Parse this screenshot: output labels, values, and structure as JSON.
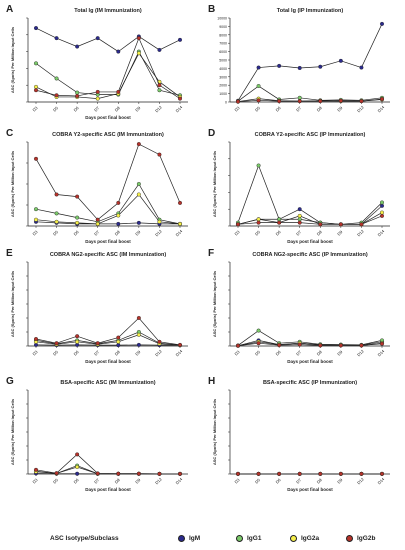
{
  "chart_data": [
    {
      "panel": "A",
      "type": "line",
      "title": "Total Ig (IM Immunization)",
      "xlabel": "Days post final boost",
      "ylabel": "ASC (Spots) Per Million Input Cells",
      "categories": [
        "D3",
        "D5",
        "D6",
        "D7",
        "D8",
        "D9",
        "D12",
        "D14"
      ],
      "ylim": [
        0,
        2500
      ],
      "yticks": [
        0,
        500,
        1000,
        1500,
        2000,
        2500
      ],
      "yticklabels": [
        "",
        "",
        "",
        "",
        "",
        ""
      ],
      "series": [
        {
          "name": "IgM",
          "color": "#2b2a8c",
          "values": [
            2200,
            1900,
            1650,
            1900,
            1500,
            1950,
            1550,
            1850
          ]
        },
        {
          "name": "IgG1",
          "color": "#7bc96a",
          "values": [
            1150,
            700,
            280,
            220,
            220,
            1500,
            350,
            200
          ]
        },
        {
          "name": "IgG2a",
          "color": "#f6ef4a",
          "values": [
            450,
            150,
            150,
            100,
            250,
            1450,
            600,
            150
          ]
        },
        {
          "name": "IgG2b",
          "color": "#b5332b",
          "values": [
            350,
            200,
            180,
            300,
            300,
            1900,
            500,
            100
          ]
        }
      ]
    },
    {
      "panel": "B",
      "type": "line",
      "title": "Total Ig (IP Immunization)",
      "xlabel": "",
      "ylabel": "",
      "categories": [
        "D3",
        "D5",
        "D6",
        "D7",
        "D8",
        "D9",
        "D12",
        "D14"
      ],
      "ylim": [
        0,
        10000
      ],
      "yticks": [
        0,
        1000,
        2000,
        3000,
        4000,
        5000,
        6000,
        7000,
        8000,
        9000,
        10000
      ],
      "yticklabels": [
        "0",
        "1000",
        "2000",
        "3000",
        "4000",
        "5000",
        "6000",
        "7000",
        "8000",
        "9000",
        "10000"
      ],
      "series": [
        {
          "name": "IgM",
          "color": "#2b2a8c",
          "values": [
            150,
            4100,
            4300,
            4050,
            4200,
            4900,
            4100,
            9300
          ]
        },
        {
          "name": "IgG1",
          "color": "#7bc96a",
          "values": [
            100,
            1900,
            300,
            500,
            200,
            250,
            200,
            500
          ]
        },
        {
          "name": "IgG2a",
          "color": "#f6ef4a",
          "values": [
            50,
            400,
            150,
            100,
            150,
            100,
            100,
            300
          ]
        },
        {
          "name": "IgG2b",
          "color": "#b5332b",
          "values": [
            50,
            200,
            100,
            100,
            100,
            150,
            100,
            350
          ]
        }
      ]
    },
    {
      "panel": "C",
      "type": "line",
      "title": "COBRA Y2-specific ASC (IM Immunization)",
      "xlabel": "Days post final boost",
      "ylabel": "ASC (Spots) Per Million Input Cells",
      "categories": [
        "D3",
        "D5",
        "D6",
        "D7",
        "D8",
        "D9",
        "D12",
        "D14"
      ],
      "ylim": [
        0,
        400
      ],
      "yticks": [
        0,
        100,
        200,
        300,
        400
      ],
      "yticklabels": [
        "",
        "",
        "",
        "",
        ""
      ],
      "series": [
        {
          "name": "IgM",
          "color": "#2b2a8c",
          "values": [
            20,
            15,
            10,
            10,
            10,
            15,
            10,
            10
          ]
        },
        {
          "name": "IgG1",
          "color": "#7bc96a",
          "values": [
            80,
            60,
            40,
            20,
            60,
            200,
            30,
            10
          ]
        },
        {
          "name": "IgG2a",
          "color": "#f6ef4a",
          "values": [
            30,
            20,
            15,
            10,
            50,
            150,
            20,
            10
          ]
        },
        {
          "name": "IgG2b",
          "color": "#b5332b",
          "values": [
            320,
            150,
            140,
            30,
            110,
            390,
            340,
            110
          ]
        }
      ]
    },
    {
      "panel": "D",
      "type": "line",
      "title": "COBRA Y2-specific ASC (IP Immunization)",
      "xlabel": "Days post final boost",
      "ylabel": "ASC (Spots) Per Million Input Cells",
      "categories": [
        "D3",
        "D5",
        "D6",
        "D7",
        "D8",
        "D9",
        "D12",
        "D14"
      ],
      "ylim": [
        0,
        250
      ],
      "yticks": [
        0,
        50,
        100,
        150,
        200,
        250
      ],
      "yticklabels": [
        "",
        "",
        "",
        "",
        "",
        ""
      ],
      "series": [
        {
          "name": "IgM",
          "color": "#2b2a8c",
          "values": [
            5,
            20,
            20,
            50,
            10,
            5,
            5,
            60
          ]
        },
        {
          "name": "IgG1",
          "color": "#7bc96a",
          "values": [
            10,
            180,
            20,
            20,
            10,
            5,
            10,
            70
          ]
        },
        {
          "name": "IgG2a",
          "color": "#f6ef4a",
          "values": [
            5,
            20,
            10,
            30,
            5,
            5,
            5,
            40
          ]
        },
        {
          "name": "IgG2b",
          "color": "#b5332b",
          "values": [
            5,
            10,
            10,
            10,
            5,
            5,
            5,
            30
          ]
        }
      ]
    },
    {
      "panel": "E",
      "type": "line",
      "title": "COBRA NG2-specific ASC (IM Immunization)",
      "xlabel": "Days post final boost",
      "ylabel": "ASC (Spots) Per Million Input Cells",
      "categories": [
        "D3",
        "D5",
        "D6",
        "D7",
        "D8",
        "D9",
        "D12",
        "D14"
      ],
      "ylim": [
        0,
        3000
      ],
      "yticks": [
        0,
        500,
        1000,
        1500,
        2000,
        2500,
        3000
      ],
      "yticklabels": [
        "",
        "",
        "",
        "",
        "",
        "",
        ""
      ],
      "series": [
        {
          "name": "IgM",
          "color": "#2b2a8c",
          "values": [
            40,
            30,
            40,
            30,
            30,
            40,
            30,
            30
          ]
        },
        {
          "name": "IgG1",
          "color": "#7bc96a",
          "values": [
            200,
            80,
            200,
            80,
            200,
            500,
            100,
            30
          ]
        },
        {
          "name": "IgG2a",
          "color": "#f6ef4a",
          "values": [
            150,
            60,
            150,
            60,
            150,
            400,
            80,
            30
          ]
        },
        {
          "name": "IgG2b",
          "color": "#b5332b",
          "values": [
            250,
            100,
            350,
            100,
            300,
            1000,
            150,
            40
          ]
        }
      ]
    },
    {
      "panel": "F",
      "type": "line",
      "title": "COBRA NG2-specific ASC (IP Immunization)",
      "xlabel": "Days post final boost",
      "ylabel": "ASC (Spots) Per Million Input Cells",
      "categories": [
        "D3",
        "D5",
        "D6",
        "D7",
        "D8",
        "D9",
        "D12",
        "D14"
      ],
      "ylim": [
        0,
        3000
      ],
      "yticks": [
        0,
        500,
        1000,
        1500,
        2000,
        2500,
        3000
      ],
      "yticklabels": [
        "",
        "",
        "",
        "",
        "",
        "",
        ""
      ],
      "series": [
        {
          "name": "IgM",
          "color": "#2b2a8c",
          "values": [
            10,
            200,
            50,
            100,
            50,
            40,
            30,
            150
          ]
        },
        {
          "name": "IgG1",
          "color": "#7bc96a",
          "values": [
            20,
            550,
            100,
            150,
            60,
            50,
            40,
            200
          ]
        },
        {
          "name": "IgG2a",
          "color": "#f6ef4a",
          "values": [
            10,
            150,
            50,
            100,
            30,
            30,
            20,
            100
          ]
        },
        {
          "name": "IgG2b",
          "color": "#b5332b",
          "values": [
            10,
            100,
            30,
            50,
            20,
            20,
            20,
            80
          ]
        }
      ]
    },
    {
      "panel": "G",
      "type": "line",
      "title": "BSA-specific ASC (IM Immunization)",
      "xlabel": "Days post final boost",
      "ylabel": "ASC (Spots) Per Million Input Cells",
      "categories": [
        "D3",
        "D5",
        "D6",
        "D7",
        "D8",
        "D9",
        "D12",
        "D14"
      ],
      "ylim": [
        0,
        3000
      ],
      "yticks": [
        0,
        500,
        1000,
        1500,
        2000,
        2500,
        3000
      ],
      "yticklabels": [
        "",
        "",
        "",
        "",
        "",
        "",
        ""
      ],
      "series": [
        {
          "name": "IgM",
          "color": "#2b2a8c",
          "values": [
            20,
            10,
            10,
            5,
            5,
            5,
            5,
            5
          ]
        },
        {
          "name": "IgG1",
          "color": "#7bc96a",
          "values": [
            100,
            20,
            300,
            10,
            10,
            10,
            5,
            5
          ]
        },
        {
          "name": "IgG2a",
          "color": "#f6ef4a",
          "values": [
            80,
            20,
            250,
            10,
            10,
            10,
            5,
            5
          ]
        },
        {
          "name": "IgG2b",
          "color": "#b5332b",
          "values": [
            150,
            30,
            700,
            20,
            10,
            10,
            5,
            5
          ]
        }
      ]
    },
    {
      "panel": "H",
      "type": "line",
      "title": "BSA-specific ASC (IP Immunization)",
      "xlabel": "Days post final boost",
      "ylabel": "ASC (Spots) Per Million Input Cells",
      "categories": [
        "D3",
        "D5",
        "D6",
        "D7",
        "D8",
        "D9",
        "D12",
        "D14"
      ],
      "ylim": [
        0,
        3000
      ],
      "yticks": [
        0,
        500,
        1000,
        1500,
        2000,
        2500,
        3000
      ],
      "yticklabels": [
        "",
        "",
        "",
        "",
        "",
        "",
        ""
      ],
      "series": [
        {
          "name": "IgM",
          "color": "#2b2a8c",
          "values": [
            5,
            5,
            5,
            5,
            5,
            5,
            5,
            5
          ]
        },
        {
          "name": "IgG1",
          "color": "#7bc96a",
          "values": [
            5,
            5,
            5,
            5,
            5,
            5,
            5,
            5
          ]
        },
        {
          "name": "IgG2a",
          "color": "#f6ef4a",
          "values": [
            5,
            5,
            5,
            5,
            5,
            5,
            5,
            5
          ]
        },
        {
          "name": "IgG2b",
          "color": "#b5332b",
          "values": [
            5,
            5,
            5,
            5,
            5,
            5,
            5,
            5
          ]
        }
      ]
    }
  ],
  "legend": {
    "title": "ASC Isotype/Subclass",
    "items": [
      {
        "label": "IgM",
        "color": "#2b2a8c"
      },
      {
        "label": "IgG1",
        "color": "#7bc96a"
      },
      {
        "label": "IgG2a",
        "color": "#f6ef4a"
      },
      {
        "label": "IgG2b",
        "color": "#b5332b"
      }
    ]
  }
}
